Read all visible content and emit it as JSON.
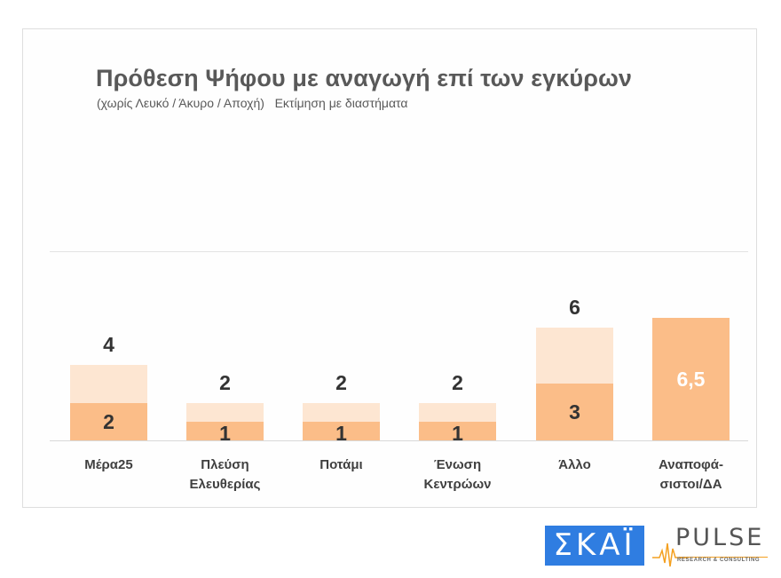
{
  "chart_data": {
    "type": "bar",
    "title": "Πρόθεση Ψήφου με αναγωγή επί των εγκύρων",
    "subtitle": "(χωρίς Λευκό / Άκυρο / Αποχή)   Εκτίμηση με διαστήματα",
    "xlabel": "",
    "ylabel": "",
    "ylim": [
      0,
      10
    ],
    "grid": true,
    "legend": "none",
    "categories": [
      "Μέρα25",
      "Πλεύση Ελευθερίας",
      "Ποτάμι",
      "Ένωση Κεντρώων",
      "Άλλο",
      "Αναποφάσιστοι/ΔΑ"
    ],
    "series": [
      {
        "name": "lower",
        "values": [
          2,
          1,
          1,
          1,
          3,
          6.5
        ],
        "color": "#fbbd88"
      },
      {
        "name": "upper",
        "values": [
          4,
          2,
          2,
          2,
          6,
          null
        ],
        "color": "#fde6d2"
      }
    ],
    "bars": [
      {
        "category": "Μέρα25",
        "label_lines": "Μέρα25",
        "low": 2,
        "high": 4,
        "low_label": "2",
        "high_label": "4"
      },
      {
        "category": "Πλεύση Ελευθερίας",
        "label_lines": "Πλεύση\nΕλευθερίας",
        "low": 1,
        "high": 2,
        "low_label": "1",
        "high_label": "2"
      },
      {
        "category": "Ποτάμι",
        "label_lines": "Ποτάμι",
        "low": 1,
        "high": 2,
        "low_label": "1",
        "high_label": "2"
      },
      {
        "category": "Ένωση Κεντρώων",
        "label_lines": "Ένωση\nΚεντρώων",
        "low": 1,
        "high": 2,
        "low_label": "1",
        "high_label": "2"
      },
      {
        "category": "Άλλο",
        "label_lines": "Άλλο",
        "low": 3,
        "high": 6,
        "low_label": "3",
        "high_label": "6"
      },
      {
        "category": "Αναποφάσιστοι/ΔΑ",
        "label_lines": "Αναποφά-\nσιστοι/ΔΑ",
        "low": 6.5,
        "high": null,
        "low_label": "6,5",
        "high_label": null
      }
    ]
  },
  "logos": {
    "skai": "ΣΚΑΪ",
    "pulse": "PULSE",
    "pulse_sub": "RESEARCH & CONSULTING"
  },
  "colors": {
    "range_light": "#fde6d2",
    "range_dark": "#fbbd88",
    "skai_blue": "#2f7de1",
    "pulse_orange": "#f4a020"
  }
}
